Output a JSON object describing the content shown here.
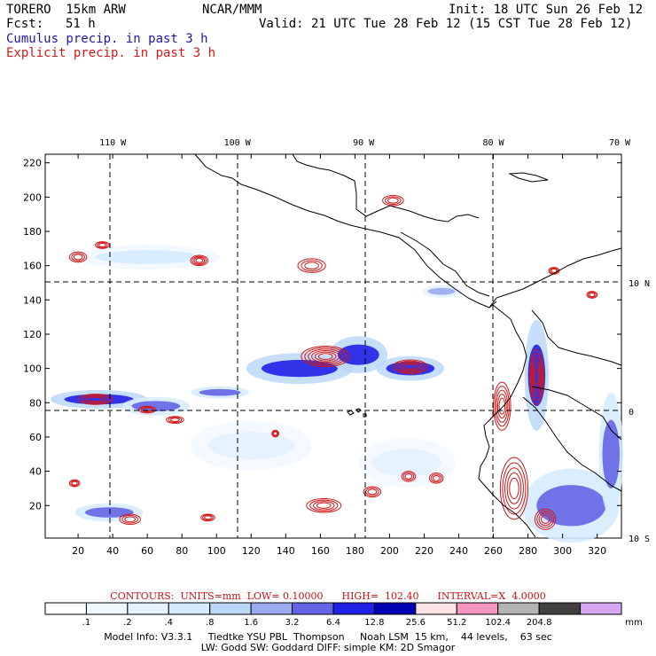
{
  "header": {
    "model": "TORERO  15km ARW",
    "org": "NCAR/MMM",
    "init": "Init: 18 UTC Sun 26 Feb 12",
    "fcst_label": "Fcst:",
    "fcst_value": "51 h",
    "valid": "Valid: 21 UTC Tue 28 Feb 12 (15 CST Tue 28 Feb 12)"
  },
  "legend": {
    "cumulus": "Cumulus precip. in past 3 h",
    "explicit": "Explicit precip. in past 3 h"
  },
  "chart_data": {
    "type": "heatmap",
    "title": "Cumulus / Explicit precipitation in past 3 h",
    "x_grid_ticks": [
      20,
      40,
      60,
      80,
      100,
      120,
      140,
      160,
      180,
      200,
      220,
      240,
      260,
      280,
      300,
      320
    ],
    "y_grid_ticks": [
      20,
      40,
      60,
      80,
      100,
      120,
      140,
      160,
      180,
      200,
      220
    ],
    "xlim": [
      1,
      334
    ],
    "ylim": [
      1,
      225
    ],
    "longitude_labels": [
      {
        "label": "110 W",
        "x": 40
      },
      {
        "label": "100 W",
        "x": 112
      },
      {
        "label": "90 W",
        "x": 185
      },
      {
        "label": "80 W",
        "x": 260
      },
      {
        "label": "70 W",
        "x": 333
      }
    ],
    "latitude_labels": [
      {
        "label": "10 N",
        "y": 150
      },
      {
        "label": "0",
        "y": 75
      },
      {
        "label": "10 S",
        "y": 1
      }
    ],
    "colorbar": {
      "unit": "mm",
      "thresholds": [
        ".1",
        ".2",
        ".4",
        ".8",
        "1.6",
        "3.2",
        "6.4",
        "12.8",
        "25.6",
        "51.2",
        "102.4",
        "204.8"
      ],
      "colors": [
        "#ffffff",
        "#f2f8ff",
        "#e4f1ff",
        "#d5ebff",
        "#bcd8f8",
        "#9aaaf0",
        "#6464e6",
        "#2020e6",
        "#0000b4",
        "#fde2e6",
        "#f596c0",
        "#b4b4b4",
        "#404040",
        "#d7a6f2"
      ]
    },
    "contours": {
      "units": "mm",
      "low": "0.10000",
      "high": "102.40",
      "interval": "4.0000"
    },
    "precip_cells": [
      {
        "type": "cumulus",
        "x": 32,
        "y": 82,
        "rx": 20,
        "ry": 3,
        "level": 7
      },
      {
        "type": "cumulus",
        "x": 65,
        "y": 78,
        "rx": 14,
        "ry": 3,
        "level": 6
      },
      {
        "type": "cumulus",
        "x": 102,
        "y": 86,
        "rx": 12,
        "ry": 2,
        "level": 6
      },
      {
        "type": "cumulus",
        "x": 148,
        "y": 100,
        "rx": 22,
        "ry": 5,
        "level": 7
      },
      {
        "type": "cumulus",
        "x": 182,
        "y": 108,
        "rx": 12,
        "ry": 6,
        "level": 7
      },
      {
        "type": "cumulus",
        "x": 212,
        "y": 100,
        "rx": 14,
        "ry": 4,
        "level": 7
      },
      {
        "type": "cumulus",
        "x": 38,
        "y": 16,
        "rx": 14,
        "ry": 3,
        "level": 6
      },
      {
        "type": "cumulus",
        "x": 285,
        "y": 96,
        "rx": 5,
        "ry": 18,
        "level": 7
      },
      {
        "type": "cumulus",
        "x": 305,
        "y": 20,
        "rx": 20,
        "ry": 12,
        "level": 6
      },
      {
        "type": "cumulus",
        "x": 328,
        "y": 50,
        "rx": 5,
        "ry": 20,
        "level": 6
      },
      {
        "type": "cumulus",
        "x": 230,
        "y": 145,
        "rx": 8,
        "ry": 2,
        "level": 5
      },
      {
        "type": "cumulus",
        "x": 60,
        "y": 165,
        "rx": 30,
        "ry": 4,
        "level": 3
      },
      {
        "type": "cumulus",
        "x": 120,
        "y": 55,
        "rx": 25,
        "ry": 8,
        "level": 2
      },
      {
        "type": "cumulus",
        "x": 210,
        "y": 45,
        "rx": 20,
        "ry": 8,
        "level": 2
      },
      {
        "type": "explicit",
        "x": 90,
        "y": 163,
        "rx": 5,
        "ry": 3,
        "level": 4
      },
      {
        "type": "explicit",
        "x": 34,
        "y": 172,
        "rx": 4,
        "ry": 2,
        "level": 3
      },
      {
        "type": "explicit",
        "x": 20,
        "y": 165,
        "rx": 5,
        "ry": 3,
        "level": 3
      },
      {
        "type": "explicit",
        "x": 155,
        "y": 160,
        "rx": 8,
        "ry": 4,
        "level": 3
      },
      {
        "type": "explicit",
        "x": 202,
        "y": 198,
        "rx": 6,
        "ry": 3,
        "level": 3
      },
      {
        "type": "explicit",
        "x": 163,
        "y": 107,
        "rx": 14,
        "ry": 6,
        "level": 6
      },
      {
        "type": "explicit",
        "x": 212,
        "y": 101,
        "rx": 10,
        "ry": 4,
        "level": 5
      },
      {
        "type": "explicit",
        "x": 285,
        "y": 95,
        "rx": 4,
        "ry": 16,
        "level": 6
      },
      {
        "type": "explicit",
        "x": 265,
        "y": 78,
        "rx": 5,
        "ry": 14,
        "level": 5
      },
      {
        "type": "explicit",
        "x": 272,
        "y": 30,
        "rx": 8,
        "ry": 18,
        "level": 5
      },
      {
        "type": "explicit",
        "x": 290,
        "y": 12,
        "rx": 6,
        "ry": 6,
        "level": 4
      },
      {
        "type": "explicit",
        "x": 162,
        "y": 20,
        "rx": 10,
        "ry": 4,
        "level": 4
      },
      {
        "type": "explicit",
        "x": 190,
        "y": 28,
        "rx": 5,
        "ry": 3,
        "level": 3
      },
      {
        "type": "explicit",
        "x": 211,
        "y": 37,
        "rx": 4,
        "ry": 3,
        "level": 3
      },
      {
        "type": "explicit",
        "x": 227,
        "y": 36,
        "rx": 4,
        "ry": 3,
        "level": 3
      },
      {
        "type": "explicit",
        "x": 30,
        "y": 82,
        "rx": 10,
        "ry": 3,
        "level": 4
      },
      {
        "type": "explicit",
        "x": 60,
        "y": 76,
        "rx": 5,
        "ry": 2,
        "level": 3
      },
      {
        "type": "explicit",
        "x": 76,
        "y": 70,
        "rx": 5,
        "ry": 2,
        "level": 3
      },
      {
        "type": "explicit",
        "x": 134,
        "y": 62,
        "rx": 2,
        "ry": 2,
        "level": 3
      },
      {
        "type": "explicit",
        "x": 18,
        "y": 33,
        "rx": 3,
        "ry": 2,
        "level": 3
      },
      {
        "type": "explicit",
        "x": 50,
        "y": 12,
        "rx": 6,
        "ry": 3,
        "level": 3
      },
      {
        "type": "explicit",
        "x": 95,
        "y": 13,
        "rx": 4,
        "ry": 2,
        "level": 3
      },
      {
        "type": "explicit",
        "x": 295,
        "y": 157,
        "rx": 3,
        "ry": 2,
        "level": 3
      },
      {
        "type": "explicit",
        "x": 317,
        "y": 143,
        "rx": 3,
        "ry": 2,
        "level": 3
      }
    ]
  },
  "footer": {
    "contours_line": "CONTOURS:  UNITS=mm  LOW= 0.10000      HIGH=  102.40      INTERVAL=X  4.0000",
    "model_info": "Model Info: V3.3.1     Tiedtke YSU PBL  Thompson     Noah LSM  15 km,    44 levels,    63 sec",
    "physics": "LW: Godd SW: Goddard DIFF: simple KM: 2D Smagor"
  }
}
